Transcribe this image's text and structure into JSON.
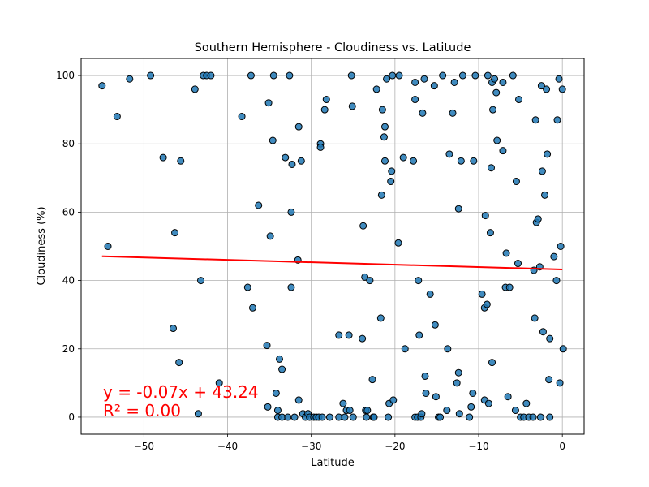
{
  "chart_data": {
    "type": "scatter",
    "title": "Southern Hemisphere - Cloudiness vs. Latitude",
    "xlabel": "Latitude",
    "ylabel": "Cloudiness (%)",
    "xlim": [
      -57.5,
      2.6
    ],
    "ylim": [
      -5,
      105
    ],
    "xticks": [
      -50,
      -40,
      -30,
      -20,
      -10,
      0
    ],
    "yticks": [
      0,
      20,
      40,
      60,
      80,
      100
    ],
    "grid": true,
    "point_color": "#1f77b4",
    "point_edge_color": "#000000",
    "regression": {
      "slope": -0.07,
      "intercept": 43.24,
      "x_range": [
        -55,
        0
      ],
      "color": "#ff0000",
      "equation": "y = -0.07x + 43.24",
      "r_squared": "R² = 0.00"
    },
    "points": [
      [
        -55,
        97
      ],
      [
        -54.3,
        50
      ],
      [
        -53.2,
        88
      ],
      [
        -51.7,
        99
      ],
      [
        -49.2,
        100
      ],
      [
        -47.7,
        76
      ],
      [
        -46.5,
        26
      ],
      [
        -46.3,
        54
      ],
      [
        -45.8,
        16
      ],
      [
        -45.6,
        75
      ],
      [
        -43.9,
        96
      ],
      [
        -43.5,
        1
      ],
      [
        -43.2,
        40
      ],
      [
        -42.9,
        100
      ],
      [
        -42.5,
        100
      ],
      [
        -42,
        100
      ],
      [
        -41,
        10
      ],
      [
        -38.3,
        88
      ],
      [
        -37.6,
        38
      ],
      [
        -37.2,
        100
      ],
      [
        -37,
        32
      ],
      [
        -36.3,
        62
      ],
      [
        -35.3,
        21
      ],
      [
        -35.2,
        3
      ],
      [
        -35.1,
        92
      ],
      [
        -34.9,
        53
      ],
      [
        -34.6,
        81
      ],
      [
        -34.5,
        100
      ],
      [
        -34.2,
        7
      ],
      [
        -34,
        2
      ],
      [
        -34,
        0
      ],
      [
        -33.8,
        17
      ],
      [
        -33.5,
        14
      ],
      [
        -33.5,
        0
      ],
      [
        -33.1,
        76
      ],
      [
        -32.8,
        0
      ],
      [
        -32.6,
        100
      ],
      [
        -32.4,
        38
      ],
      [
        -32.4,
        60
      ],
      [
        -32.3,
        74
      ],
      [
        -32,
        0
      ],
      [
        -31.6,
        46
      ],
      [
        -31.5,
        85
      ],
      [
        -31.5,
        5
      ],
      [
        -31.2,
        75
      ],
      [
        -31,
        1
      ],
      [
        -30.7,
        0
      ],
      [
        -30.4,
        1
      ],
      [
        -30.2,
        0
      ],
      [
        -29.7,
        0
      ],
      [
        -29.4,
        0
      ],
      [
        -29.1,
        0
      ],
      [
        -28.9,
        80
      ],
      [
        -28.9,
        79
      ],
      [
        -28.7,
        0
      ],
      [
        -28.4,
        90
      ],
      [
        -28.2,
        93
      ],
      [
        -27.8,
        0
      ],
      [
        -26.7,
        24
      ],
      [
        -26.7,
        0
      ],
      [
        -26.2,
        4
      ],
      [
        -26,
        0
      ],
      [
        -25.8,
        2
      ],
      [
        -25.5,
        24
      ],
      [
        -25.4,
        2
      ],
      [
        -25.2,
        100
      ],
      [
        -25.1,
        91
      ],
      [
        -25,
        0
      ],
      [
        -23.9,
        23
      ],
      [
        -23.8,
        56
      ],
      [
        -23.6,
        41
      ],
      [
        -23.5,
        2
      ],
      [
        -23.4,
        0
      ],
      [
        -23.3,
        2
      ],
      [
        -23,
        40
      ],
      [
        -22.7,
        11
      ],
      [
        -22.6,
        0
      ],
      [
        -22.5,
        0
      ],
      [
        -22.2,
        96
      ],
      [
        -21.7,
        29
      ],
      [
        -21.6,
        65
      ],
      [
        -21.5,
        90
      ],
      [
        -21.3,
        82
      ],
      [
        -21.2,
        85
      ],
      [
        -21.2,
        75
      ],
      [
        -21,
        99
      ],
      [
        -20.8,
        0
      ],
      [
        -20.7,
        4
      ],
      [
        -20.5,
        69
      ],
      [
        -20.4,
        72
      ],
      [
        -20.3,
        100
      ],
      [
        -20.2,
        5
      ],
      [
        -19.6,
        51
      ],
      [
        -19.5,
        100
      ],
      [
        -19,
        76
      ],
      [
        -18.8,
        20
      ],
      [
        -17.8,
        75
      ],
      [
        -17.6,
        98
      ],
      [
        -17.6,
        0
      ],
      [
        -17.6,
        93
      ],
      [
        -17.3,
        0
      ],
      [
        -17.2,
        40
      ],
      [
        -17.1,
        24
      ],
      [
        -16.9,
        0
      ],
      [
        -16.8,
        1
      ],
      [
        -16.7,
        89
      ],
      [
        -16.5,
        99
      ],
      [
        -16.4,
        12
      ],
      [
        -16.3,
        7
      ],
      [
        -15.8,
        36
      ],
      [
        -15.3,
        97
      ],
      [
        -15.2,
        27
      ],
      [
        -15.1,
        6
      ],
      [
        -14.8,
        0
      ],
      [
        -14.6,
        0
      ],
      [
        -14.3,
        100
      ],
      [
        -13.8,
        2
      ],
      [
        -13.7,
        20
      ],
      [
        -13.5,
        77
      ],
      [
        -13.1,
        89
      ],
      [
        -12.9,
        98
      ],
      [
        -12.6,
        10
      ],
      [
        -12.4,
        61
      ],
      [
        -12.4,
        13
      ],
      [
        -12.3,
        1
      ],
      [
        -12.1,
        75
      ],
      [
        -11.9,
        100
      ],
      [
        -11.1,
        0
      ],
      [
        -10.9,
        3
      ],
      [
        -10.7,
        7
      ],
      [
        -10.6,
        75
      ],
      [
        -10.4,
        100
      ],
      [
        -9.6,
        36
      ],
      [
        -9.3,
        32
      ],
      [
        -9.3,
        5
      ],
      [
        -9.2,
        59
      ],
      [
        -9,
        33
      ],
      [
        -8.9,
        100
      ],
      [
        -8.8,
        4
      ],
      [
        -8.6,
        54
      ],
      [
        -8.5,
        73
      ],
      [
        -8.4,
        98
      ],
      [
        -8.4,
        16
      ],
      [
        -8.3,
        90
      ],
      [
        -8.1,
        99
      ],
      [
        -7.9,
        95
      ],
      [
        -7.8,
        81
      ],
      [
        -7.1,
        78
      ],
      [
        -7.1,
        98
      ],
      [
        -6.8,
        38
      ],
      [
        -6.7,
        48
      ],
      [
        -6.5,
        6
      ],
      [
        -6.3,
        38
      ],
      [
        -5.9,
        100
      ],
      [
        -5.6,
        2
      ],
      [
        -5.5,
        69
      ],
      [
        -5.3,
        45
      ],
      [
        -5.2,
        93
      ],
      [
        -5,
        0
      ],
      [
        -4.6,
        0
      ],
      [
        -4.3,
        4
      ],
      [
        -4,
        0
      ],
      [
        -3.5,
        0
      ],
      [
        -3.4,
        43
      ],
      [
        -3.3,
        29
      ],
      [
        -3.2,
        87
      ],
      [
        -3.1,
        57
      ],
      [
        -2.9,
        58
      ],
      [
        -2.7,
        44
      ],
      [
        -2.6,
        0
      ],
      [
        -2.5,
        97
      ],
      [
        -2.4,
        72
      ],
      [
        -2.3,
        25
      ],
      [
        -2.1,
        65
      ],
      [
        -1.9,
        96
      ],
      [
        -1.8,
        77
      ],
      [
        -1.6,
        11
      ],
      [
        -1.5,
        0
      ],
      [
        -1.5,
        23
      ],
      [
        -1,
        47
      ],
      [
        -0.7,
        40
      ],
      [
        -0.6,
        87
      ],
      [
        -0.4,
        99
      ],
      [
        -0.3,
        10
      ],
      [
        -0.2,
        50
      ],
      [
        0,
        96
      ],
      [
        0.1,
        20
      ]
    ]
  }
}
